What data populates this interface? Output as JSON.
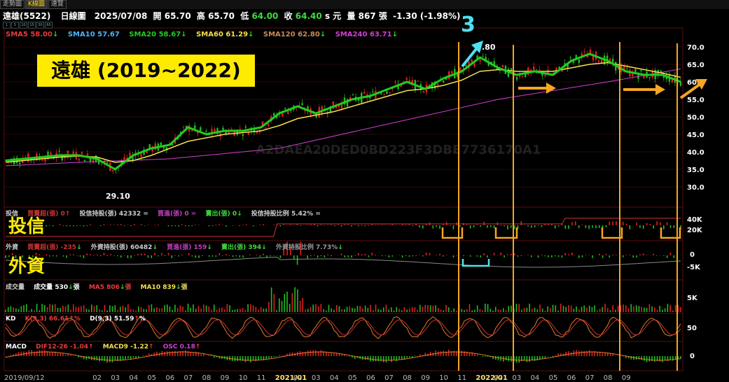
{
  "tabs": [
    {
      "label": "走勢圖",
      "active": false
    },
    {
      "label": "K線圖",
      "active": true
    },
    {
      "label": "速覽",
      "active": false
    }
  ],
  "header": {
    "stock": "遠雄(5522)",
    "period": "日線圖",
    "date": "2025/07/08",
    "open_label": "開",
    "open": "65.70",
    "high_label": "高",
    "high": "65.70",
    "low_label": "低",
    "low": "64.00",
    "close_label": "收",
    "close": "64.40",
    "unit": "s 元",
    "volume_label": "量",
    "volume": "867",
    "volume_unit": "張",
    "change": "-1.30 (-1.98%)"
  },
  "zoom_buttons": [
    "1",
    "5",
    "10",
    "15",
    "30",
    "60"
  ],
  "annotations": {
    "title": "遠雄 (2019~2022)",
    "label_trust": "投信",
    "label_foreign": "外資",
    "marker": "3"
  },
  "colors": {
    "sma5": "#e63c3c",
    "sma10": "#4eb4ff",
    "sma20": "#22cc22",
    "sma60": "#f4e04a",
    "sma120": "#c98a5a",
    "sma240": "#d040d0",
    "orange": "#f5a623",
    "cyan": "#4ee0ee",
    "up": "#e02020",
    "down": "#22bb22"
  },
  "chart_data": [
    {
      "panel": "price",
      "type": "candlestick-with-moving-averages",
      "legend": [
        {
          "name": "SMA5",
          "value": "58.00",
          "arrow": "down",
          "color": "#e63c3c"
        },
        {
          "name": "SMA10",
          "value": "57.67",
          "arrow": "",
          "color": "#4eb4ff"
        },
        {
          "name": "SMA20",
          "value": "58.67",
          "arrow": "down",
          "color": "#22cc22"
        },
        {
          "name": "SMA60",
          "value": "61.29",
          "arrow": "down",
          "color": "#f4e04a"
        },
        {
          "name": "SMA120",
          "value": "62.80",
          "arrow": "down",
          "color": "#c98a5a"
        },
        {
          "name": "SMA240",
          "value": "63.71",
          "arrow": "down",
          "color": "#d040d0"
        }
      ],
      "ylim": [
        25,
        73
      ],
      "yticks": [
        "30.0",
        "35.0",
        "40.0",
        "45.0",
        "50.0",
        "55.0",
        "60.0",
        "65.0",
        "70.0"
      ],
      "annotations": [
        {
          "text": "29.10",
          "x": "2020/03",
          "y": 29.1
        },
        {
          "text": ".80",
          "x": "2021/11",
          "y": 70.8
        }
      ],
      "sma20": [
        [
          "2019/09",
          37.5
        ],
        [
          "2019/10",
          38
        ],
        [
          "2019/11",
          38.5
        ],
        [
          "2019/12",
          39
        ],
        [
          "2020/01",
          39
        ],
        [
          "2020/02",
          38
        ],
        [
          "2020/03",
          35
        ],
        [
          "2020/04",
          39
        ],
        [
          "2020/05",
          41
        ],
        [
          "2020/06",
          42
        ],
        [
          "2020/07",
          47
        ],
        [
          "2020/08",
          45
        ],
        [
          "2020/09",
          46
        ],
        [
          "2020/10",
          46
        ],
        [
          "2020/11",
          47
        ],
        [
          "2020/12",
          51
        ],
        [
          "2021/01",
          53
        ],
        [
          "2021/02",
          51
        ],
        [
          "2021/03",
          53
        ],
        [
          "2021/04",
          55
        ],
        [
          "2021/05",
          56
        ],
        [
          "2021/06",
          58
        ],
        [
          "2021/07",
          60
        ],
        [
          "2021/08",
          58
        ],
        [
          "2021/09",
          61
        ],
        [
          "2021/10",
          63
        ],
        [
          "2021/11",
          67
        ],
        [
          "2021/12",
          64
        ],
        [
          "2022/01",
          62
        ],
        [
          "2022/02",
          63
        ],
        [
          "2022/03",
          62
        ],
        [
          "2022/04",
          66
        ],
        [
          "2022/05",
          68
        ],
        [
          "2022/06",
          66
        ],
        [
          "2022/07",
          63
        ],
        [
          "2022/08",
          62
        ],
        [
          "2022/09",
          62
        ],
        [
          "2022/10",
          60
        ]
      ],
      "sma60": [
        [
          "2019/09",
          37
        ],
        [
          "2019/10",
          37.5
        ],
        [
          "2019/11",
          38
        ],
        [
          "2019/12",
          38.5
        ],
        [
          "2020/01",
          38.8
        ],
        [
          "2020/02",
          38.5
        ],
        [
          "2020/03",
          37
        ],
        [
          "2020/04",
          37.5
        ],
        [
          "2020/05",
          39
        ],
        [
          "2020/06",
          41
        ],
        [
          "2020/07",
          43
        ],
        [
          "2020/08",
          44
        ],
        [
          "2020/09",
          45
        ],
        [
          "2020/10",
          45.5
        ],
        [
          "2020/11",
          46
        ],
        [
          "2020/12",
          47.5
        ],
        [
          "2021/01",
          49.5
        ],
        [
          "2021/02",
          50.5
        ],
        [
          "2021/03",
          51.5
        ],
        [
          "2021/04",
          53
        ],
        [
          "2021/05",
          54.5
        ],
        [
          "2021/06",
          56
        ],
        [
          "2021/07",
          57.5
        ],
        [
          "2021/08",
          58
        ],
        [
          "2021/09",
          59
        ],
        [
          "2021/10",
          60.5
        ],
        [
          "2021/11",
          63
        ],
        [
          "2021/12",
          63.5
        ],
        [
          "2022/01",
          63
        ],
        [
          "2022/02",
          63
        ],
        [
          "2022/03",
          63
        ],
        [
          "2022/04",
          64
        ],
        [
          "2022/05",
          65
        ],
        [
          "2022/06",
          65.5
        ],
        [
          "2022/07",
          64.5
        ],
        [
          "2022/08",
          63.5
        ],
        [
          "2022/09",
          62.5
        ],
        [
          "2022/10",
          61.3
        ]
      ],
      "sma240": [
        [
          "2019/09",
          36
        ],
        [
          "2020/01",
          37
        ],
        [
          "2020/06",
          38
        ],
        [
          "2020/12",
          41
        ],
        [
          "2021/06",
          48
        ],
        [
          "2021/12",
          55
        ],
        [
          "2022/06",
          60
        ],
        [
          "2022/10",
          63.7
        ]
      ]
    },
    {
      "panel": "investment-trust",
      "type": "bar",
      "legend": [
        {
          "name": "買賣超(張)",
          "value": "0",
          "arrow": "up"
        },
        {
          "name": "投信持股(張)",
          "value": "42332",
          "arrow": "="
        },
        {
          "name": "買進(張)",
          "value": "0",
          "arrow": "="
        },
        {
          "name": "賣出(張)",
          "value": "0",
          "arrow": "down"
        },
        {
          "name": "投信持股比例",
          "value": "5.42%",
          "arrow": "="
        }
      ],
      "yticks": [
        "40K",
        "20K"
      ]
    },
    {
      "panel": "foreign",
      "type": "bar",
      "legend": [
        {
          "name": "買賣超(張)",
          "value": "-235",
          "arrow": "down"
        },
        {
          "name": "外資持股(張)",
          "value": "60482",
          "arrow": "down"
        },
        {
          "name": "買進(張)",
          "value": "159",
          "arrow": "down"
        },
        {
          "name": "賣出(張)",
          "value": "394",
          "arrow": "down"
        },
        {
          "name": "外資持股比例",
          "value": "7.73%",
          "arrow": "down"
        }
      ],
      "yticks": [
        "0",
        "-5K"
      ]
    },
    {
      "panel": "volume",
      "type": "bar",
      "legend": [
        {
          "name": "成交量",
          "value": "530",
          "arrow": "down",
          "unit": "張"
        },
        {
          "name": "MA5",
          "value": "806",
          "arrow": "down",
          "unit": "張"
        },
        {
          "name": "MA10",
          "value": "839",
          "arrow": "down",
          "unit": "張"
        }
      ],
      "yticks": [
        "5K"
      ]
    },
    {
      "panel": "kd",
      "type": "line",
      "legend": [
        {
          "name": "K(9,3)",
          "value": "66.61",
          "arrow": "up",
          "unit": "%"
        },
        {
          "name": "D(9,3)",
          "value": "51.59",
          "arrow": "up",
          "unit": "%"
        }
      ],
      "yticks": [
        "50"
      ]
    },
    {
      "panel": "macd",
      "type": "bar",
      "legend": [
        {
          "name": "DIF12-26",
          "value": "-1.04",
          "arrow": "up"
        },
        {
          "name": "MACD9",
          "value": "-1.22",
          "arrow": "up"
        },
        {
          "name": "OSC",
          "value": "0.18",
          "arrow": "up"
        }
      ],
      "yticks": [
        "0"
      ]
    }
  ],
  "xaxis": {
    "start": "2019/09/12",
    "labels": [
      "02",
      "03",
      "04",
      "05",
      "06",
      "07",
      "08",
      "09",
      "10",
      "11",
      "2021/01",
      "02",
      "03",
      "04",
      "05",
      "06",
      "07",
      "08",
      "09",
      "10",
      "11",
      "2022/01",
      "02",
      "03",
      "04",
      "05",
      "06",
      "07",
      "08",
      "09"
    ]
  }
}
